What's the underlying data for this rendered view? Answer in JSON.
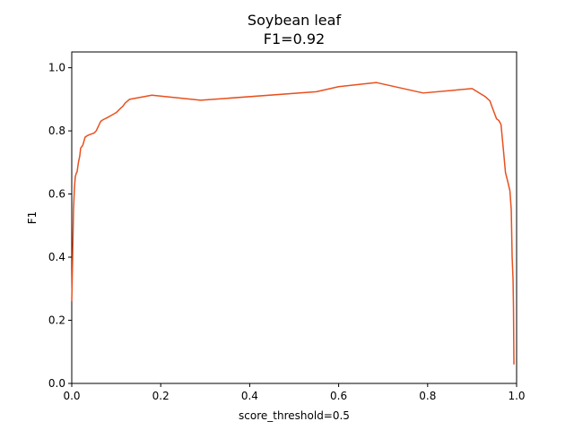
{
  "chart_data": {
    "type": "line",
    "title": "Soybean leaf",
    "subtitle": "F1=0.92",
    "xlabel": "score_threshold=0.5",
    "ylabel": "F1",
    "xlim": [
      0.0,
      1.0
    ],
    "ylim": [
      0.0,
      1.05
    ],
    "xticks": [
      "0.0",
      "0.2",
      "0.4",
      "0.6",
      "0.8",
      "1.0"
    ],
    "yticks": [
      "0.0",
      "0.2",
      "0.4",
      "0.6",
      "0.8",
      "1.0"
    ],
    "grid": false,
    "series": [
      {
        "name": "F1",
        "color": "#e8501e",
        "x": [
          0.0,
          0.002,
          0.004,
          0.006,
          0.008,
          0.01,
          0.012,
          0.015,
          0.018,
          0.02,
          0.025,
          0.03,
          0.035,
          0.04,
          0.05,
          0.055,
          0.06,
          0.065,
          0.07,
          0.08,
          0.09,
          0.1,
          0.11,
          0.115,
          0.12,
          0.13,
          0.18,
          0.29,
          0.55,
          0.6,
          0.685,
          0.79,
          0.9,
          0.93,
          0.94,
          0.945,
          0.955,
          0.96,
          0.962,
          0.965,
          0.968,
          0.97,
          0.975,
          0.98,
          0.985,
          0.988,
          0.99,
          0.992,
          0.993,
          0.994
        ],
        "y": [
          0.26,
          0.4,
          0.55,
          0.62,
          0.655,
          0.665,
          0.67,
          0.7,
          0.72,
          0.745,
          0.755,
          0.78,
          0.785,
          0.788,
          0.793,
          0.8,
          0.815,
          0.83,
          0.835,
          0.842,
          0.85,
          0.858,
          0.872,
          0.878,
          0.888,
          0.9,
          0.913,
          0.897,
          0.924,
          0.94,
          0.953,
          0.92,
          0.934,
          0.908,
          0.895,
          0.875,
          0.838,
          0.833,
          0.828,
          0.82,
          0.775,
          0.745,
          0.668,
          0.64,
          0.61,
          0.55,
          0.4,
          0.33,
          0.24,
          0.06
        ]
      }
    ]
  }
}
